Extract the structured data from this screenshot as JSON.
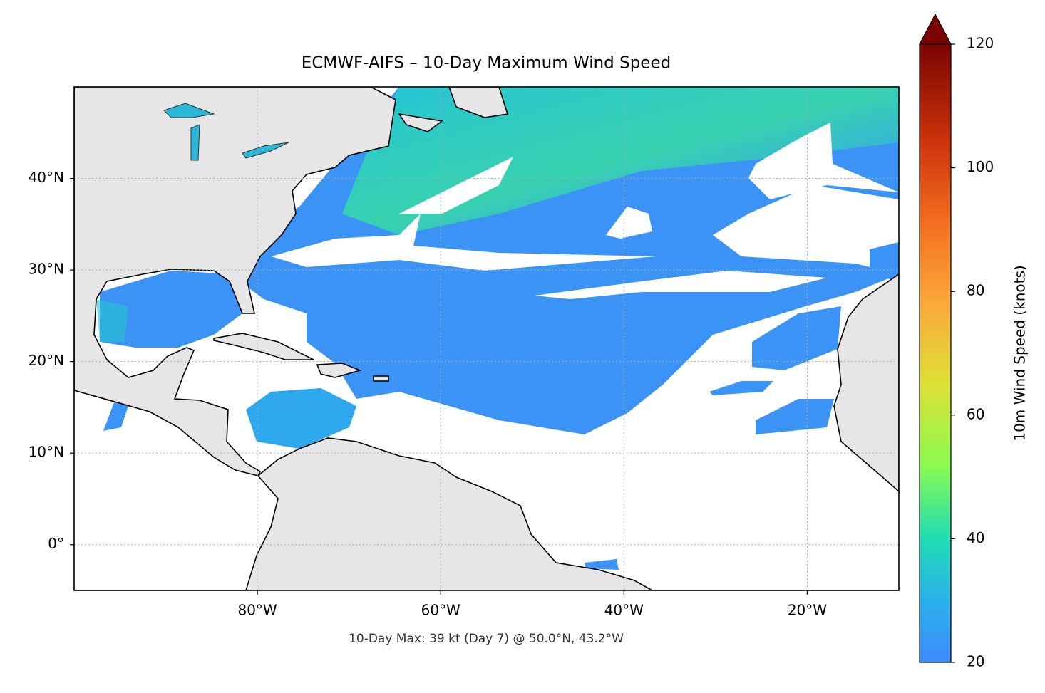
{
  "chart_data": {
    "type": "map",
    "title": "ECMWF-AIFS – 10-Day Maximum Wind Speed",
    "footnote": "10-Day Max: 39 kt (Day 7) @ 50.0°N, 43.2°W",
    "xlim": [
      -100,
      -10
    ],
    "ylim": [
      -5,
      50
    ],
    "xticks": [
      {
        "value": -80,
        "label": "80°W"
      },
      {
        "value": -60,
        "label": "60°W"
      },
      {
        "value": -40,
        "label": "40°W"
      },
      {
        "value": -20,
        "label": "20°W"
      }
    ],
    "yticks": [
      {
        "value": 0,
        "label": "0°"
      },
      {
        "value": 10,
        "label": "10°N"
      },
      {
        "value": 20,
        "label": "20°N"
      },
      {
        "value": 30,
        "label": "30°N"
      },
      {
        "value": 40,
        "label": "40°N"
      }
    ],
    "grid": true,
    "colorbar": {
      "label": "10m Wind Speed (knots)",
      "lim": [
        20,
        120
      ],
      "ticks": [
        20,
        40,
        60,
        80,
        100,
        120
      ],
      "extend": "max"
    }
  }
}
